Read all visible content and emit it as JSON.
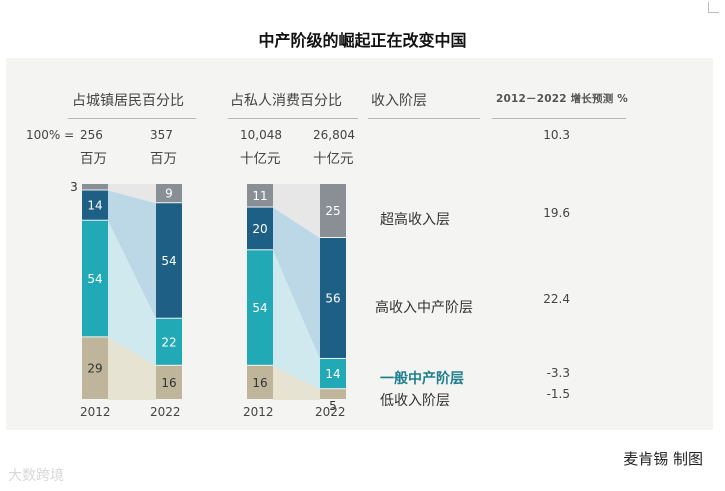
{
  "title": "中产阶级的崛起正在改变中国",
  "headers": {
    "population": "占城镇居民百分比",
    "consumption": "占私人消费百分比",
    "income_level": "收入阶层",
    "growth": "2012－2022 增长预测 %"
  },
  "totals": {
    "prefix": "100% =",
    "pop_2012_value": "256",
    "pop_2012_unit": "百万",
    "pop_2022_value": "357",
    "pop_2022_unit": "百万",
    "cons_2012_value": "10,048",
    "cons_2012_unit": "十亿元",
    "cons_2022_value": "26,804",
    "cons_2022_unit": "十亿元",
    "total_growth": "10.3"
  },
  "layers": [
    {
      "name": "超高收入层",
      "growth": "19.6",
      "color": "#8a8f96"
    },
    {
      "name": "高收入中产阶层",
      "growth": "22.4",
      "color": "#1e5f85"
    },
    {
      "name": "一般中产阶层",
      "growth": "-3.3",
      "color": "#21a9b5"
    },
    {
      "name": "低收入阶层",
      "growth": "-1.5",
      "color": "#bfb59a"
    }
  ],
  "chart_data": {
    "type": "stacked-bar",
    "categories": [
      "2012",
      "2022"
    ],
    "charts": [
      {
        "name": "占城镇居民百分比",
        "series": [
          {
            "name": "低收入阶层",
            "values": [
              29,
              16
            ]
          },
          {
            "name": "一般中产阶层",
            "values": [
              54,
              22
            ]
          },
          {
            "name": "高收入中产阶层",
            "values": [
              14,
              54
            ]
          },
          {
            "name": "超高收入层",
            "values": [
              3,
              9
            ]
          }
        ]
      },
      {
        "name": "占私人消费百分比",
        "series": [
          {
            "name": "低收入阶层",
            "values": [
              16,
              5
            ]
          },
          {
            "name": "一般中产阶层",
            "values": [
              54,
              14
            ]
          },
          {
            "name": "高收入中产阶层",
            "values": [
              20,
              56
            ]
          },
          {
            "name": "超高收入层",
            "values": [
              11,
              25
            ]
          }
        ]
      }
    ]
  },
  "credit": "麦肯锡 制图",
  "watermark": "大数跨境"
}
